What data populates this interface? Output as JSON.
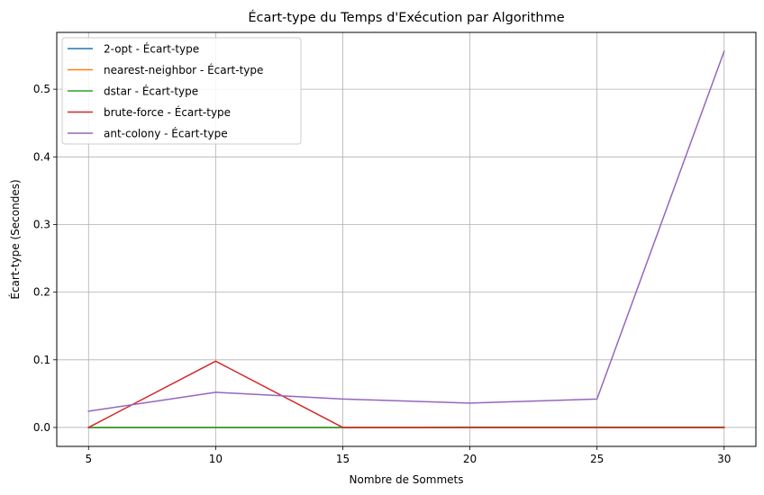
{
  "chart_data": {
    "type": "line",
    "title": "Écart-type du Temps d'Exécution par Algorithme",
    "xlabel": "Nombre de Sommets",
    "ylabel": "Écart-type (Secondes)",
    "x": [
      5,
      10,
      15,
      20,
      25,
      30
    ],
    "xlim": [
      3.75,
      31.25
    ],
    "ylim": [
      -0.028,
      0.584
    ],
    "xticks": [
      "5",
      "10",
      "15",
      "20",
      "25",
      "30"
    ],
    "xtick_values": [
      5,
      10,
      15,
      20,
      25,
      30
    ],
    "yticks": [
      "0.0",
      "0.1",
      "0.2",
      "0.3",
      "0.4",
      "0.5"
    ],
    "ytick_values": [
      0.0,
      0.1,
      0.2,
      0.3,
      0.4,
      0.5
    ],
    "grid": true,
    "legend_position": "top-left",
    "series": [
      {
        "name": "2-opt - Écart-type",
        "color": "#1f77b4",
        "values": [
          0.0,
          0.0,
          0.0,
          0.0,
          0.0,
          0.0
        ]
      },
      {
        "name": "nearest-neighbor - Écart-type",
        "color": "#ff7f0e",
        "values": [
          0.0,
          0.0,
          0.0,
          0.0,
          0.0,
          0.0
        ]
      },
      {
        "name": "dstar - Écart-type",
        "color": "#2ca02c",
        "values": [
          0.0,
          0.0,
          0.0,
          0.0005,
          0.0005,
          0.0005
        ]
      },
      {
        "name": "brute-force - Écart-type",
        "color": "#d62728",
        "values": [
          0.0,
          0.098,
          0.0,
          0.0,
          0.0,
          0.0
        ]
      },
      {
        "name": "ant-colony - Écart-type",
        "color": "#9467bd",
        "values": [
          0.024,
          0.052,
          0.042,
          0.036,
          0.042,
          0.556
        ]
      }
    ]
  }
}
